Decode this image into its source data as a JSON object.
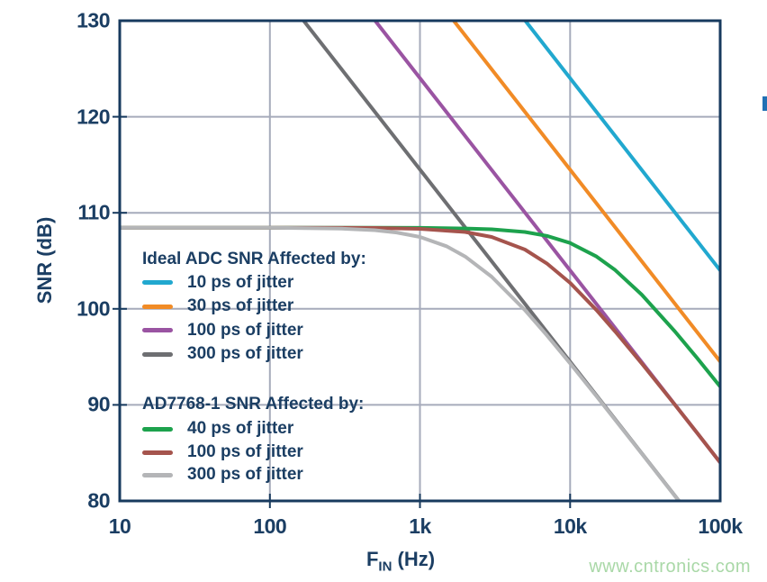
{
  "watermark": {
    "text": "www.cntronics.com",
    "color": "#a9d8a7"
  },
  "chart_data": {
    "type": "line",
    "title": "",
    "x_axis": {
      "label_base": "F",
      "label_sub": "IN",
      "label_rest": " (Hz)",
      "scale": "log",
      "min": 10,
      "max": 100000,
      "ticks": [
        {
          "v": 10,
          "label": "10"
        },
        {
          "v": 100,
          "label": "100"
        },
        {
          "v": 1000,
          "label": "1k"
        },
        {
          "v": 10000,
          "label": "10k"
        },
        {
          "v": 100000,
          "label": "100k"
        }
      ],
      "gridlines": [
        100,
        1000,
        10000,
        100000
      ]
    },
    "y_axis": {
      "label": "SNR (dB)",
      "min": 80,
      "max": 130,
      "ticks": [
        {
          "v": 130,
          "label": "130"
        },
        {
          "v": 120,
          "label": "120"
        },
        {
          "v": 110,
          "label": "110"
        },
        {
          "v": 100,
          "label": "100"
        },
        {
          "v": 90,
          "label": "90"
        },
        {
          "v": 80,
          "label": "80"
        }
      ],
      "gridlines": [
        120,
        110,
        100,
        90
      ]
    },
    "style": {
      "axis_color": "#173a5e",
      "text_color": "#1b3e63",
      "grid_color": "#a6abbb",
      "line_width": 4
    },
    "ad7768_base_snr_db": 108.45,
    "series": [
      {
        "name": "Ideal ADC, 10 ps of jitter",
        "jitter_ps": 10,
        "color": "#21a8cf",
        "points": [
          [
            5033,
            130
          ],
          [
            100000,
            104.0
          ]
        ]
      },
      {
        "name": "Ideal ADC, 30 ps of jitter",
        "jitter_ps": 30,
        "color": "#f18b26",
        "points": [
          [
            1678,
            130
          ],
          [
            100000,
            94.5
          ]
        ]
      },
      {
        "name": "Ideal ADC, 100 ps of jitter",
        "jitter_ps": 100,
        "color": "#9a54a2",
        "points": [
          [
            503,
            130
          ],
          [
            100000,
            84.0
          ]
        ]
      },
      {
        "name": "Ideal ADC, 300 ps of jitter",
        "jitter_ps": 300,
        "color": "#6e6f72",
        "points": [
          [
            168,
            130
          ],
          [
            53100,
            80.0
          ]
        ]
      },
      {
        "name": "AD7768-1, 40 ps of jitter",
        "jitter_ps": 40,
        "color": "#1da24d",
        "points": [
          [
            10,
            108.45
          ],
          [
            100,
            108.45
          ],
          [
            500,
            108.44
          ],
          [
            1000,
            108.43
          ],
          [
            2000,
            108.37
          ],
          [
            3000,
            108.28
          ],
          [
            5000,
            108.0
          ],
          [
            7000,
            107.6
          ],
          [
            10000,
            106.86
          ],
          [
            15000,
            105.45
          ],
          [
            20000,
            104.03
          ],
          [
            30000,
            101.48
          ],
          [
            50000,
            97.64
          ],
          [
            70000,
            94.9
          ],
          [
            100000,
            91.9
          ]
        ]
      },
      {
        "name": "AD7768-1, 100 ps of jitter",
        "jitter_ps": 100,
        "color": "#a5544d",
        "points": [
          [
            10,
            108.45
          ],
          [
            100,
            108.45
          ],
          [
            500,
            108.42
          ],
          [
            1000,
            108.33
          ],
          [
            2000,
            108.0
          ],
          [
            3000,
            107.49
          ],
          [
            5000,
            106.17
          ],
          [
            7000,
            104.73
          ],
          [
            10000,
            102.7
          ],
          [
            15000,
            99.87
          ],
          [
            20000,
            97.64
          ],
          [
            30000,
            94.32
          ],
          [
            50000,
            90.0
          ],
          [
            70000,
            87.1
          ],
          [
            100000,
            84.0
          ]
        ]
      },
      {
        "name": "AD7768-1, 300 ps of jitter",
        "jitter_ps": 300,
        "color": "#b4b5b7",
        "points": [
          [
            10,
            108.45
          ],
          [
            100,
            108.44
          ],
          [
            300,
            108.35
          ],
          [
            500,
            108.19
          ],
          [
            700,
            107.95
          ],
          [
            1000,
            107.49
          ],
          [
            1500,
            106.52
          ],
          [
            2000,
            105.45
          ],
          [
            3000,
            103.35
          ],
          [
            5000,
            99.87
          ],
          [
            7000,
            97.25
          ],
          [
            10000,
            94.32
          ],
          [
            15000,
            90.9
          ],
          [
            20000,
            88.43
          ],
          [
            30000,
            84.93
          ],
          [
            50000,
            80.51
          ],
          [
            53100,
            80.0
          ]
        ]
      }
    ],
    "legend": {
      "position": "inside-left",
      "groups": [
        {
          "header": "Ideal ADC SNR Affected by:",
          "items": [
            {
              "label": "10 ps of jitter",
              "color": "#21a8cf"
            },
            {
              "label": "30 ps of jitter",
              "color": "#f18b26"
            },
            {
              "label": "100 ps of jitter",
              "color": "#9a54a2"
            },
            {
              "label": "300 ps of jitter",
              "color": "#6e6f72"
            }
          ]
        },
        {
          "header": "AD7768-1 SNR Affected by:",
          "items": [
            {
              "label": "40 ps of jitter",
              "color": "#1da24d"
            },
            {
              "label": "100 ps of jitter",
              "color": "#a5544d"
            },
            {
              "label": "300 ps of jitter",
              "color": "#b4b5b7"
            }
          ]
        }
      ]
    }
  }
}
